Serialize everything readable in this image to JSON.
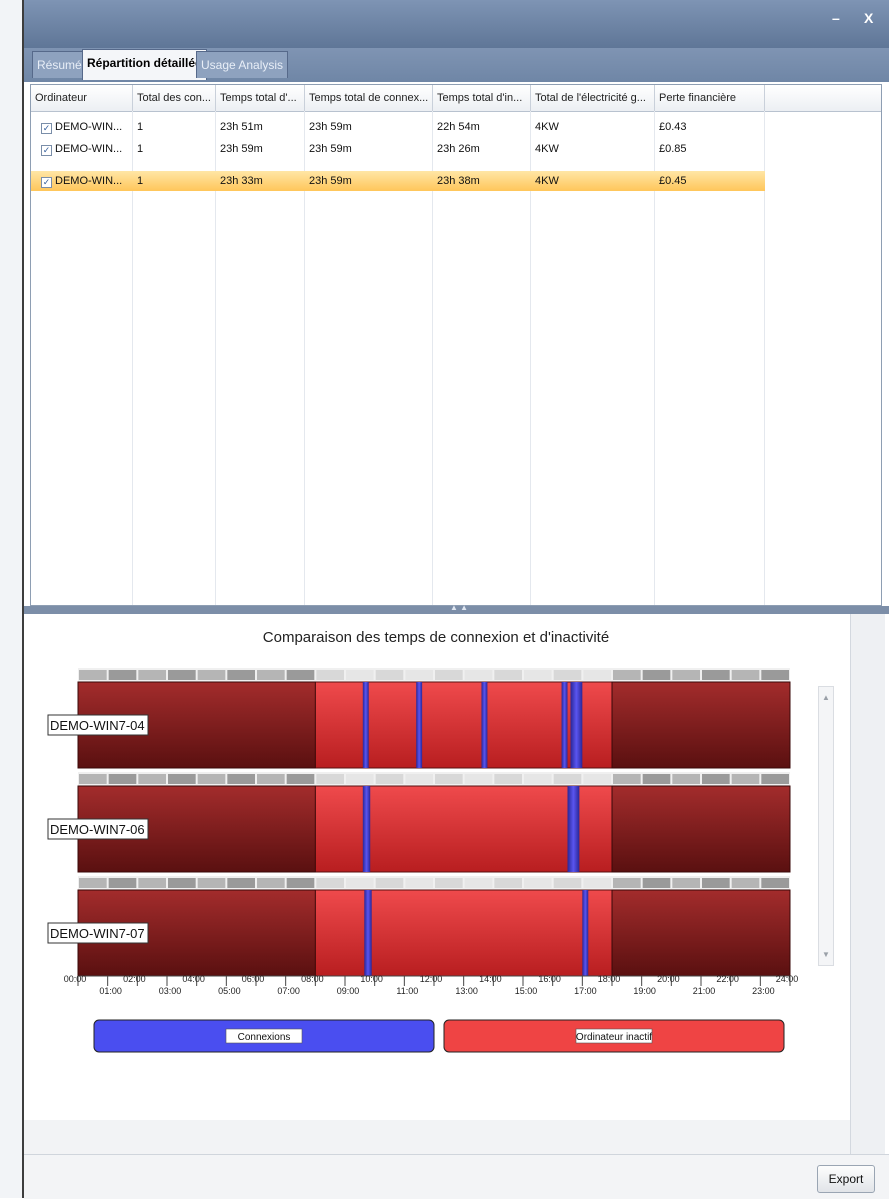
{
  "window": {
    "minimize_glyph": "–",
    "close_glyph": "X"
  },
  "tabs": [
    {
      "label": "Résumé",
      "active": false
    },
    {
      "label": "Répartition détaillée",
      "active": true
    },
    {
      "label": "Usage Analysis",
      "active": false
    }
  ],
  "grid": {
    "headers": [
      "Ordinateur",
      "Total des con...",
      "Temps total d'...",
      "Temps total de connex...",
      "Temps total d'in...",
      "Total de l'électricité g...",
      "Perte financière"
    ],
    "rows": [
      {
        "checked": true,
        "selected": false,
        "cells": [
          "DEMO-WIN...",
          "1",
          "23h 51m",
          "23h 59m",
          "22h 54m",
          "4KW",
          "£0.43"
        ]
      },
      {
        "checked": true,
        "selected": false,
        "cells": [
          "DEMO-WIN...",
          "1",
          "23h 59m",
          "23h 59m",
          "23h 26m",
          "4KW",
          "£0.85"
        ]
      },
      {
        "checked": true,
        "selected": true,
        "cells": [
          "DEMO-WIN...",
          "1",
          "23h 33m",
          "23h 59m",
          "23h 38m",
          "4KW",
          "£0.45"
        ]
      }
    ]
  },
  "chart_data": {
    "type": "gantt",
    "title": "Comparaison des temps de connexion et d'inactivité",
    "x_tick_labels_top": [
      "00:00",
      "02:00",
      "04:00",
      "06:00",
      "08:00",
      "10:00",
      "12:00",
      "14:00",
      "16:00",
      "18:00",
      "20:00",
      "22:00",
      "24:00"
    ],
    "x_tick_labels_bottom": [
      "01:00",
      "03:00",
      "05:00",
      "07:00",
      "09:00",
      "11:00",
      "13:00",
      "15:00",
      "17:00",
      "19:00",
      "21:00",
      "23:00"
    ],
    "xlim_hours": [
      0,
      24
    ],
    "legend": [
      {
        "label": "Connexions",
        "color": "#4a4ef0"
      },
      {
        "label": "Ordinateur inactif",
        "color": "#ef4444"
      }
    ],
    "colors": {
      "inactive_dark": "#7a1a1a",
      "inactive_bright": "#e5393b",
      "connection": "#3a35c8"
    },
    "dim_ranges_hours": [
      [
        0,
        8
      ],
      [
        18,
        24
      ]
    ],
    "series": [
      {
        "name": "DEMO-WIN7-04",
        "connection_hours": [
          [
            9.6,
            9.8
          ],
          [
            11.4,
            11.6
          ],
          [
            13.6,
            13.8
          ],
          [
            16.3,
            16.5
          ],
          [
            16.6,
            17.0
          ]
        ]
      },
      {
        "name": "DEMO-WIN7-06",
        "connection_hours": [
          [
            9.6,
            9.85
          ],
          [
            16.5,
            16.9
          ]
        ]
      },
      {
        "name": "DEMO-WIN7-07",
        "connection_hours": [
          [
            9.65,
            9.9
          ],
          [
            17.0,
            17.2
          ]
        ]
      }
    ]
  },
  "buttons": {
    "export": "Export"
  }
}
